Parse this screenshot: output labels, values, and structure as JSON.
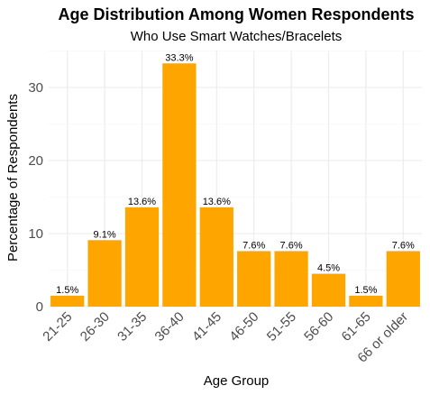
{
  "chart_data": {
    "type": "bar",
    "title": "Age Distribution Among Women Respondents",
    "subtitle": "Who Use Smart Watches/Bracelets",
    "xlabel": "Age Group",
    "ylabel": "Percentage of Respondents",
    "categories": [
      "21-25",
      "26-30",
      "31-35",
      "36-40",
      "41-45",
      "46-50",
      "51-55",
      "56-60",
      "61-65",
      "66 or older"
    ],
    "values": [
      1.5,
      9.1,
      13.6,
      33.3,
      13.6,
      7.6,
      7.6,
      4.5,
      1.5,
      7.6
    ],
    "data_labels": [
      "1.5%",
      "9.1%",
      "13.6%",
      "33.3%",
      "13.6%",
      "7.6%",
      "7.6%",
      "4.5%",
      "1.5%",
      "7.6%"
    ],
    "ylim": [
      0,
      35
    ],
    "yticks": [
      0,
      10,
      20,
      30
    ],
    "bar_color": "#FFA500",
    "grid": true,
    "legend": "none"
  }
}
